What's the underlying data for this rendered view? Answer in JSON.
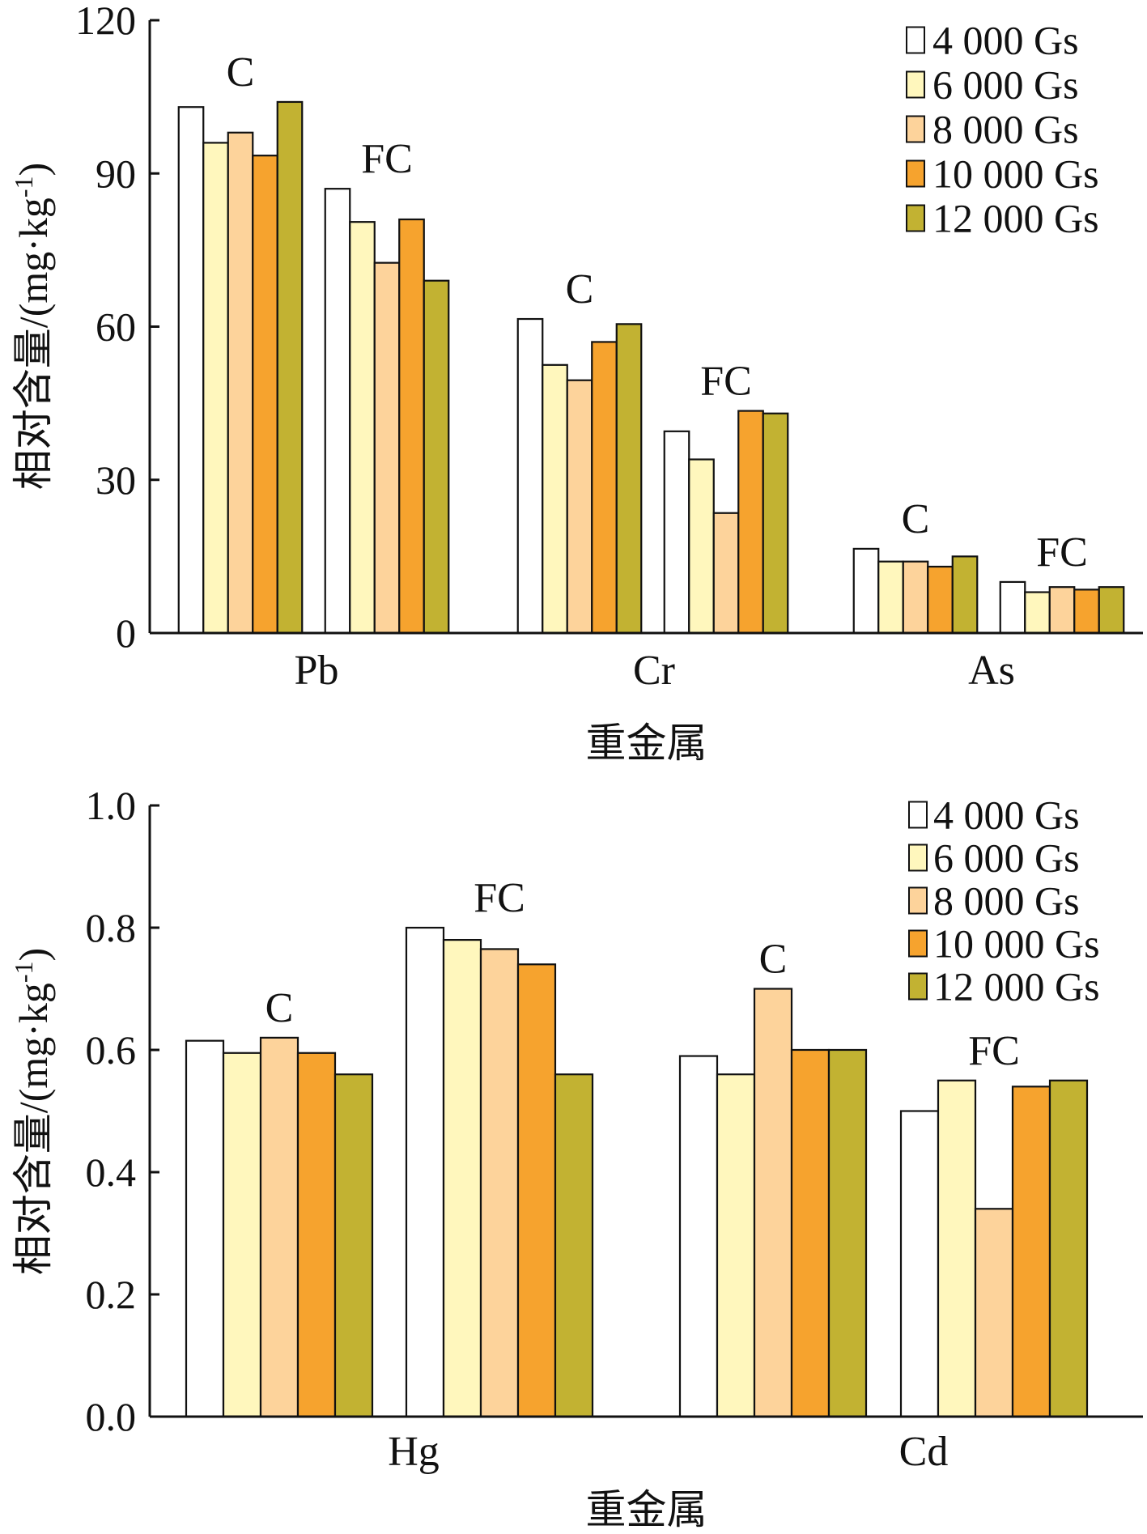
{
  "chart_data": [
    {
      "type": "bar",
      "xlabel": "重金属",
      "ylabel": "相对含量/(mg·kg-1)",
      "ylim": [
        0,
        120
      ],
      "yticks": [
        "0",
        "30",
        "60",
        "90",
        "120"
      ],
      "grid": false,
      "legend_position": "top-right",
      "categories": [
        "Pb",
        "Cr",
        "As"
      ],
      "subgroups": [
        "C",
        "FC"
      ],
      "series": [
        {
          "name": "4 000 Gs",
          "color": "#ffffff",
          "values": [
            [
              103,
              87
            ],
            [
              61.5,
              39.5
            ],
            [
              16.5,
              10
            ]
          ]
        },
        {
          "name": "6 000 Gs",
          "color": "#fff7bd",
          "values": [
            [
              96,
              80.5
            ],
            [
              52.5,
              34
            ],
            [
              14,
              8
            ]
          ]
        },
        {
          "name": "8 000 Gs",
          "color": "#fdd39b",
          "values": [
            [
              98,
              72.5
            ],
            [
              49.5,
              23.5
            ],
            [
              14,
              9
            ]
          ]
        },
        {
          "name": "10 000 Gs",
          "color": "#f6a32e",
          "values": [
            [
              93.5,
              81
            ],
            [
              57,
              43.5
            ],
            [
              13,
              8.5
            ]
          ]
        },
        {
          "name": "12 000 Gs",
          "color": "#c2b232",
          "values": [
            [
              104,
              69
            ],
            [
              60.5,
              43
            ],
            [
              15,
              9
            ]
          ]
        }
      ]
    },
    {
      "type": "bar",
      "xlabel": "重金属",
      "ylabel": "相对含量/(mg·kg-1)",
      "ylim": [
        0,
        1.0
      ],
      "yticks": [
        "0.0",
        "0.2",
        "0.4",
        "0.6",
        "0.8",
        "1.0"
      ],
      "grid": false,
      "legend_position": "top-right",
      "categories": [
        "Hg",
        "Cd"
      ],
      "subgroups": [
        "C",
        "FC"
      ],
      "series": [
        {
          "name": "4 000 Gs",
          "color": "#ffffff",
          "values": [
            [
              0.615,
              0.8
            ],
            [
              0.59,
              0.5
            ]
          ]
        },
        {
          "name": "6 000 Gs",
          "color": "#fff7bd",
          "values": [
            [
              0.595,
              0.78
            ],
            [
              0.56,
              0.55
            ]
          ]
        },
        {
          "name": "8 000 Gs",
          "color": "#fdd39b",
          "values": [
            [
              0.62,
              0.765
            ],
            [
              0.7,
              0.34
            ]
          ]
        },
        {
          "name": "10 000 Gs",
          "color": "#f6a32e",
          "values": [
            [
              0.595,
              0.74
            ],
            [
              0.6,
              0.54
            ]
          ]
        },
        {
          "name": "12 000 Gs",
          "color": "#c2b232",
          "values": [
            [
              0.56,
              0.56
            ],
            [
              0.6,
              0.55
            ]
          ]
        }
      ]
    }
  ]
}
